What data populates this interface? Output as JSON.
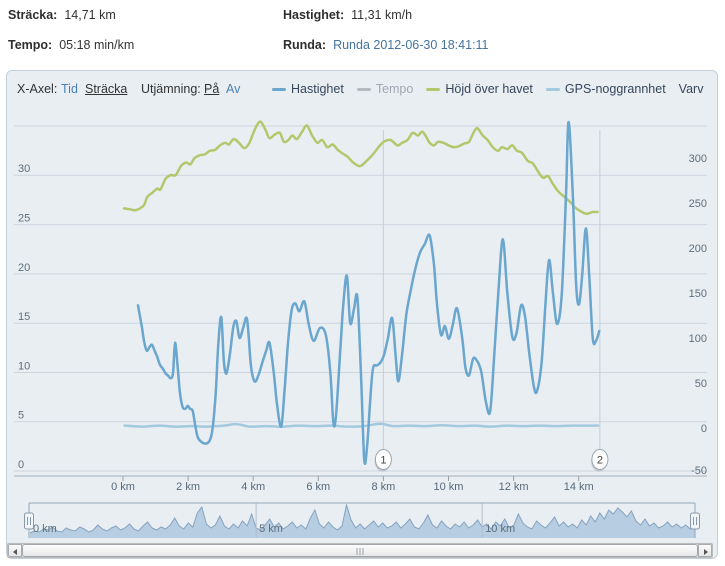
{
  "stats": {
    "stracka": {
      "label": "Sträcka:",
      "value": "14,71 km"
    },
    "hastighet": {
      "label": "Hastighet:",
      "value": "11,31 km/h"
    },
    "tempo": {
      "label": "Tempo:",
      "value": "05:18 min/km"
    },
    "runda": {
      "label": "Runda:",
      "value": "Runda 2012-06-30 18:41:11"
    }
  },
  "controls": {
    "xaxis_label": "X-Axel:",
    "option_tid": "Tid",
    "option_stracka": "Sträcka",
    "smoothing_label": "Utjämning:",
    "option_pa": "På",
    "option_av": "Av"
  },
  "legend": {
    "items": [
      {
        "id": "hastighet",
        "label": "Hastighet",
        "color": "#6aa6cd",
        "muted": false
      },
      {
        "id": "tempo",
        "label": "Tempo",
        "color": "#b3bac0",
        "muted": true
      },
      {
        "id": "hojd",
        "label": "Höjd över havet",
        "color": "#b3c86d",
        "muted": false
      },
      {
        "id": "gps",
        "label": "GPS-noggrannhet",
        "color": "#a3c9de",
        "muted": false
      }
    ],
    "varv_label": "Varv"
  },
  "chart_data": {
    "type": "line",
    "x_unit": "km",
    "x_ticks": [
      "0 km",
      "2 km",
      "4 km",
      "6 km",
      "8 km",
      "10 km",
      "12 km",
      "14 km"
    ],
    "x_tick_km": [
      0,
      2,
      4,
      6,
      8,
      10,
      12,
      14
    ],
    "left_axis": {
      "min": 0,
      "max": 35,
      "tick_labels": [
        "30",
        "25",
        "20",
        "15",
        "10",
        "5",
        "0"
      ],
      "tick_values": [
        30,
        25,
        20,
        15,
        10,
        5,
        0
      ]
    },
    "right_axis": {
      "tick_labels": [
        "300",
        "250",
        "200",
        "150",
        "100",
        "50",
        "0",
        "-50"
      ],
      "tick_values": [
        300,
        250,
        200,
        150,
        100,
        50,
        0,
        -50
      ]
    },
    "series": [
      {
        "name": "Hastighet",
        "axis": "left",
        "color": "#6aa6cd",
        "visible": true,
        "points": [
          [
            0.46,
            16.8
          ],
          [
            0.58,
            14.6
          ],
          [
            0.65,
            13.1
          ],
          [
            0.73,
            12.2
          ],
          [
            0.82,
            12.6
          ],
          [
            0.89,
            12.8
          ],
          [
            0.97,
            12.2
          ],
          [
            1.05,
            11.6
          ],
          [
            1.13,
            10.8
          ],
          [
            1.22,
            10.4
          ],
          [
            1.31,
            9.9
          ],
          [
            1.38,
            9.7
          ],
          [
            1.47,
            9.4
          ],
          [
            1.54,
            10.0
          ],
          [
            1.6,
            13.0
          ],
          [
            1.68,
            10.5
          ],
          [
            1.75,
            7.9
          ],
          [
            1.83,
            6.5
          ],
          [
            1.91,
            6.3
          ],
          [
            1.99,
            6.6
          ],
          [
            2.06,
            6.3
          ],
          [
            2.14,
            6.1
          ],
          [
            2.22,
            4.6
          ],
          [
            2.3,
            3.4
          ],
          [
            2.43,
            2.9
          ],
          [
            2.57,
            2.8
          ],
          [
            2.68,
            3.2
          ],
          [
            2.76,
            4.5
          ],
          [
            2.85,
            8.0
          ],
          [
            2.93,
            13.0
          ],
          [
            3.02,
            15.6
          ],
          [
            3.1,
            11.1
          ],
          [
            3.18,
            9.9
          ],
          [
            3.29,
            12.0
          ],
          [
            3.39,
            14.6
          ],
          [
            3.48,
            15.2
          ],
          [
            3.58,
            13.5
          ],
          [
            3.69,
            14.5
          ],
          [
            3.81,
            15.4
          ],
          [
            3.92,
            11.0
          ],
          [
            4.0,
            9.4
          ],
          [
            4.08,
            9.1
          ],
          [
            4.19,
            10.0
          ],
          [
            4.29,
            11.1
          ],
          [
            4.4,
            12.2
          ],
          [
            4.5,
            13.0
          ],
          [
            4.63,
            10.0
          ],
          [
            4.73,
            6.8
          ],
          [
            4.86,
            4.5
          ],
          [
            4.96,
            8.0
          ],
          [
            5.07,
            13.0
          ],
          [
            5.18,
            16.3
          ],
          [
            5.29,
            17.0
          ],
          [
            5.42,
            16.2
          ],
          [
            5.57,
            17.2
          ],
          [
            5.71,
            14.8
          ],
          [
            5.86,
            13.2
          ],
          [
            6.05,
            14.5
          ],
          [
            6.23,
            13.8
          ],
          [
            6.37,
            10.0
          ],
          [
            6.46,
            5.0
          ],
          [
            6.54,
            5.5
          ],
          [
            6.67,
            12.0
          ],
          [
            6.77,
            17.0
          ],
          [
            6.88,
            19.8
          ],
          [
            6.98,
            15.0
          ],
          [
            7.1,
            16.5
          ],
          [
            7.2,
            17.6
          ],
          [
            7.31,
            10.0
          ],
          [
            7.41,
            1.2
          ],
          [
            7.5,
            2.5
          ],
          [
            7.59,
            7.0
          ],
          [
            7.68,
            10.4
          ],
          [
            7.8,
            10.7
          ],
          [
            7.91,
            11.0
          ],
          [
            8.02,
            11.8
          ],
          [
            8.14,
            13.5
          ],
          [
            8.27,
            15.5
          ],
          [
            8.38,
            11.5
          ],
          [
            8.46,
            9.1
          ],
          [
            8.58,
            12.0
          ],
          [
            8.71,
            16.0
          ],
          [
            8.85,
            18.5
          ],
          [
            8.98,
            20.5
          ],
          [
            9.13,
            22.2
          ],
          [
            9.27,
            23.0
          ],
          [
            9.42,
            23.9
          ],
          [
            9.55,
            21.0
          ],
          [
            9.65,
            16.8
          ],
          [
            9.77,
            13.8
          ],
          [
            9.89,
            14.7
          ],
          [
            10.01,
            13.4
          ],
          [
            10.13,
            14.8
          ],
          [
            10.26,
            16.5
          ],
          [
            10.42,
            13.5
          ],
          [
            10.52,
            10.5
          ],
          [
            10.63,
            9.7
          ],
          [
            10.76,
            11.4
          ],
          [
            10.89,
            11.1
          ],
          [
            11.01,
            10.0
          ],
          [
            11.15,
            7.0
          ],
          [
            11.28,
            6.1
          ],
          [
            11.41,
            12.0
          ],
          [
            11.54,
            18.5
          ],
          [
            11.67,
            23.5
          ],
          [
            11.81,
            18.0
          ],
          [
            11.96,
            13.6
          ],
          [
            12.09,
            14.0
          ],
          [
            12.23,
            16.8
          ],
          [
            12.35,
            15.7
          ],
          [
            12.48,
            12.0
          ],
          [
            12.62,
            8.6
          ],
          [
            12.72,
            8.1
          ],
          [
            12.86,
            11.0
          ],
          [
            12.98,
            17.0
          ],
          [
            13.09,
            21.4
          ],
          [
            13.21,
            18.0
          ],
          [
            13.34,
            14.9
          ],
          [
            13.48,
            18.0
          ],
          [
            13.61,
            28.0
          ],
          [
            13.69,
            35.4
          ],
          [
            13.82,
            28.0
          ],
          [
            13.92,
            19.0
          ],
          [
            14.01,
            16.9
          ],
          [
            14.11,
            20.0
          ],
          [
            14.22,
            24.6
          ],
          [
            14.32,
            20.0
          ],
          [
            14.43,
            13.5
          ],
          [
            14.53,
            13.2
          ],
          [
            14.63,
            14.2
          ]
        ]
      },
      {
        "name": "Tempo",
        "axis": "left",
        "color": "#b3bac0",
        "visible": false,
        "points": []
      },
      {
        "name": "Höjd över havet",
        "axis": "right",
        "color": "#b3c86d",
        "visible": true,
        "points": [
          [
            0.03,
            244
          ],
          [
            0.21,
            243
          ],
          [
            0.37,
            242
          ],
          [
            0.52,
            244
          ],
          [
            0.65,
            248
          ],
          [
            0.75,
            257
          ],
          [
            0.89,
            261
          ],
          [
            1.05,
            266
          ],
          [
            1.15,
            265
          ],
          [
            1.31,
            277
          ],
          [
            1.47,
            281
          ],
          [
            1.62,
            281
          ],
          [
            1.78,
            291
          ],
          [
            1.94,
            295
          ],
          [
            2.07,
            293
          ],
          [
            2.2,
            300
          ],
          [
            2.36,
            303
          ],
          [
            2.51,
            304
          ],
          [
            2.67,
            308
          ],
          [
            2.83,
            309
          ],
          [
            2.98,
            314
          ],
          [
            3.14,
            317
          ],
          [
            3.25,
            315
          ],
          [
            3.4,
            321
          ],
          [
            3.56,
            317
          ],
          [
            3.72,
            311
          ],
          [
            3.87,
            316
          ],
          [
            4.03,
            330
          ],
          [
            4.14,
            338
          ],
          [
            4.24,
            340
          ],
          [
            4.38,
            331
          ],
          [
            4.5,
            322
          ],
          [
            4.66,
            326
          ],
          [
            4.82,
            328
          ],
          [
            4.94,
            318
          ],
          [
            5.08,
            320
          ],
          [
            5.2,
            325
          ],
          [
            5.34,
            321
          ],
          [
            5.5,
            329
          ],
          [
            5.65,
            336
          ],
          [
            5.81,
            325
          ],
          [
            5.97,
            317
          ],
          [
            6.12,
            320
          ],
          [
            6.28,
            312
          ],
          [
            6.44,
            315
          ],
          [
            6.6,
            309
          ],
          [
            6.75,
            305
          ],
          [
            6.91,
            301
          ],
          [
            7.07,
            295
          ],
          [
            7.28,
            291
          ],
          [
            7.49,
            297
          ],
          [
            7.7,
            305
          ],
          [
            7.85,
            312
          ],
          [
            8.01,
            318
          ],
          [
            8.22,
            320
          ],
          [
            8.43,
            314
          ],
          [
            8.58,
            317
          ],
          [
            8.74,
            320
          ],
          [
            8.9,
            328
          ],
          [
            9.06,
            325
          ],
          [
            9.21,
            329
          ],
          [
            9.42,
            317
          ],
          [
            9.55,
            314
          ],
          [
            9.68,
            318
          ],
          [
            9.84,
            317
          ],
          [
            10.0,
            314
          ],
          [
            10.16,
            312
          ],
          [
            10.31,
            313
          ],
          [
            10.47,
            316
          ],
          [
            10.63,
            318
          ],
          [
            10.78,
            329
          ],
          [
            10.89,
            333
          ],
          [
            11.05,
            325
          ],
          [
            11.2,
            320
          ],
          [
            11.36,
            312
          ],
          [
            11.52,
            308
          ],
          [
            11.64,
            312
          ],
          [
            11.81,
            310
          ],
          [
            11.96,
            314
          ],
          [
            12.1,
            308
          ],
          [
            12.25,
            306
          ],
          [
            12.43,
            297
          ],
          [
            12.59,
            294
          ],
          [
            12.75,
            285
          ],
          [
            12.91,
            278
          ],
          [
            13.06,
            280
          ],
          [
            13.21,
            271
          ],
          [
            13.37,
            263
          ],
          [
            13.52,
            258
          ],
          [
            13.71,
            252
          ],
          [
            13.89,
            245
          ],
          [
            14.05,
            241
          ],
          [
            14.24,
            238
          ],
          [
            14.43,
            240
          ],
          [
            14.58,
            240
          ]
        ]
      },
      {
        "name": "GPS-noggrannhet",
        "axis": "left",
        "color": "#a3c9de",
        "visible": true,
        "points": [
          [
            0.05,
            4.6
          ],
          [
            0.6,
            4.5
          ],
          [
            1.1,
            4.6
          ],
          [
            1.6,
            4.5
          ],
          [
            2.1,
            4.55
          ],
          [
            2.6,
            4.5
          ],
          [
            3.1,
            4.6
          ],
          [
            3.5,
            4.75
          ],
          [
            3.9,
            4.5
          ],
          [
            4.4,
            4.55
          ],
          [
            4.9,
            4.5
          ],
          [
            5.4,
            4.6
          ],
          [
            5.9,
            4.55
          ],
          [
            6.4,
            4.6
          ],
          [
            6.9,
            4.5
          ],
          [
            7.4,
            4.55
          ],
          [
            7.9,
            4.8
          ],
          [
            8.3,
            4.55
          ],
          [
            8.8,
            4.6
          ],
          [
            9.3,
            4.55
          ],
          [
            9.8,
            4.65
          ],
          [
            10.3,
            4.55
          ],
          [
            10.8,
            4.6
          ],
          [
            11.3,
            4.5
          ],
          [
            11.8,
            4.6
          ],
          [
            12.3,
            4.55
          ],
          [
            12.8,
            4.6
          ],
          [
            13.3,
            4.55
          ],
          [
            13.8,
            4.6
          ],
          [
            14.6,
            4.6
          ]
        ]
      }
    ],
    "lap_markers": [
      {
        "label": "1",
        "km": 8.0
      },
      {
        "label": "2",
        "km": 14.65
      }
    ],
    "navigator": {
      "labels": [
        {
          "text": "0 km",
          "km": 0
        },
        {
          "text": "5 km",
          "km": 5
        },
        {
          "text": "10 km",
          "km": 10
        }
      ],
      "step_km": 0.1,
      "values": [
        5,
        7,
        6,
        9,
        8,
        11,
        7,
        6,
        10,
        8,
        7,
        11,
        9,
        6,
        8,
        13,
        9,
        7,
        10,
        12,
        8,
        10,
        14,
        9,
        7,
        12,
        16,
        10,
        8,
        11,
        9,
        13,
        20,
        12,
        9,
        15,
        11,
        25,
        31,
        14,
        10,
        13,
        22,
        12,
        9,
        14,
        10,
        17,
        12,
        24,
        10,
        8,
        13,
        19,
        11,
        15,
        9,
        12,
        16,
        10,
        13,
        9,
        20,
        28,
        14,
        10,
        16,
        11,
        8,
        12,
        33,
        18,
        10,
        14,
        9,
        13,
        17,
        11,
        15,
        10,
        12,
        16,
        10,
        14,
        19,
        11,
        9,
        15,
        23,
        13,
        10,
        17,
        12,
        9,
        14,
        11,
        16,
        10,
        13,
        18,
        11,
        14,
        9,
        16,
        12,
        19,
        10,
        13,
        24,
        15,
        11,
        9,
        17,
        13,
        10,
        15,
        21,
        12,
        16,
        11,
        14,
        10,
        18,
        13,
        22,
        16,
        25,
        19,
        28,
        24,
        30,
        26,
        21,
        27,
        17,
        13,
        19,
        12,
        15,
        10,
        12,
        16,
        11,
        14,
        10,
        13,
        9,
        11
      ]
    }
  }
}
